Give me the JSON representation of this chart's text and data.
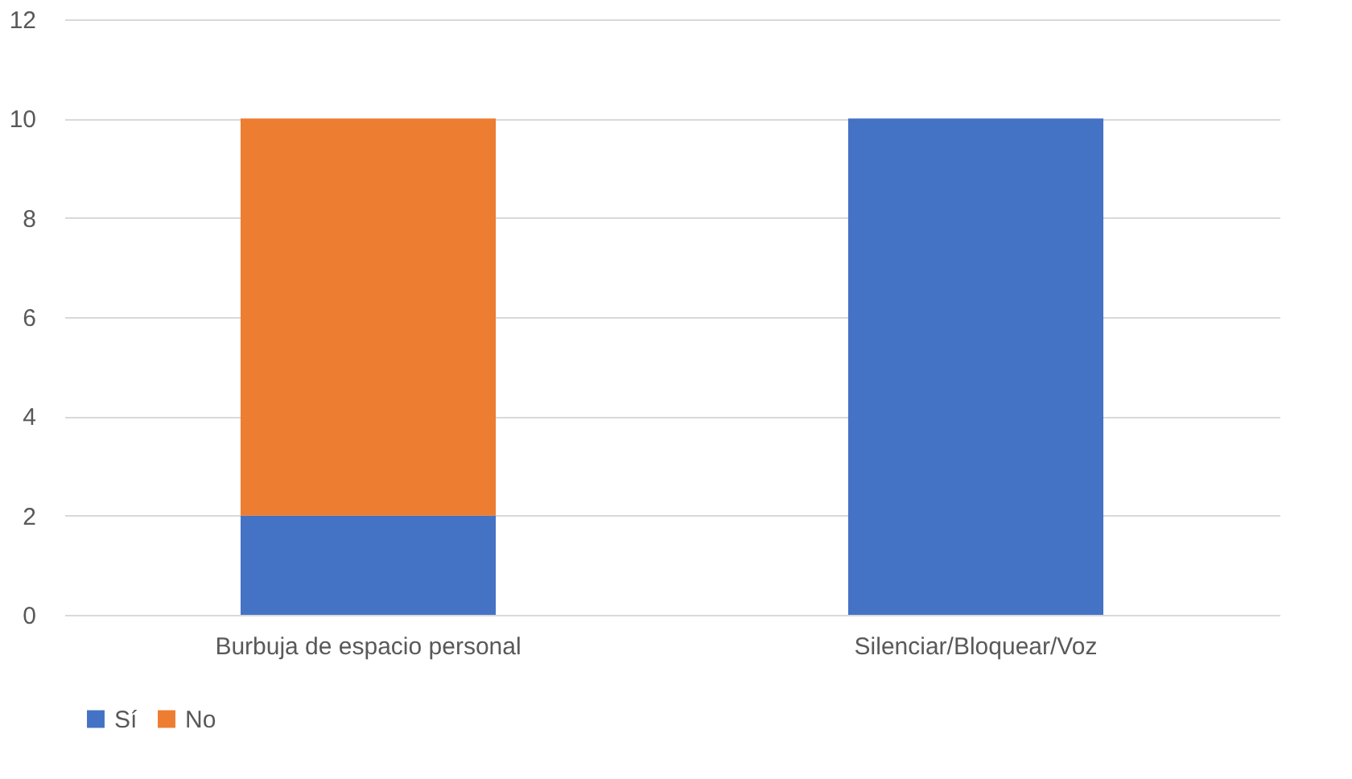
{
  "chart_data": {
    "type": "bar",
    "stacked": true,
    "categories": [
      "Burbuja de espacio personal",
      "Silenciar/Bloquear/Voz"
    ],
    "series": [
      {
        "name": "Sí",
        "color": "#4472c4",
        "values": [
          2,
          10
        ]
      },
      {
        "name": "No",
        "color": "#ed7d31",
        "values": [
          8,
          null
        ]
      }
    ],
    "ylim": [
      0,
      12
    ],
    "yticks": [
      0,
      2,
      4,
      6,
      8,
      10,
      12
    ],
    "grid": "y",
    "legend": "bottom"
  }
}
